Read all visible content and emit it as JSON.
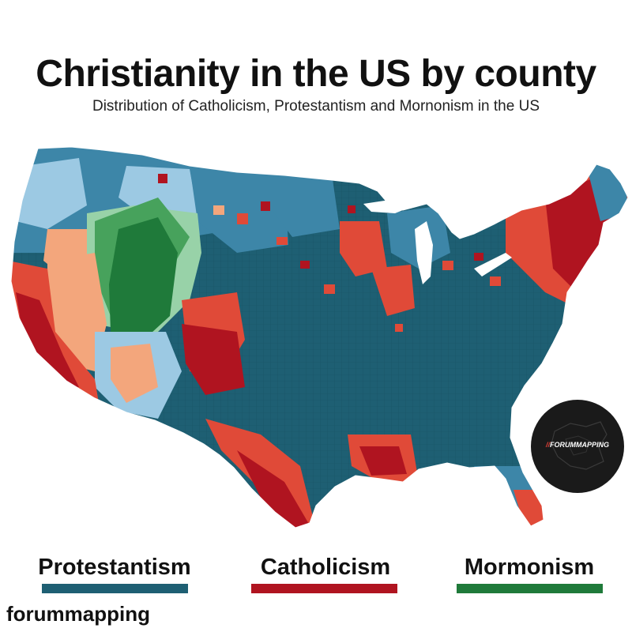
{
  "header": {
    "title": "Christianity in the US by county",
    "subtitle": "Distribution of Catholicism, Protestantism and Mornonism in the US"
  },
  "legend": [
    {
      "label": "Protestantism",
      "color": "#1e5f73"
    },
    {
      "label": "Catholicism",
      "color": "#b01420"
    },
    {
      "label": "Mormonism",
      "color": "#1f7a3a"
    }
  ],
  "palette": {
    "protestant_dark": "#1e5f73",
    "protestant_mid": "#3d86a8",
    "protestant_light": "#9cc9e3",
    "catholic_dark": "#b01420",
    "catholic_mid": "#e04a38",
    "catholic_light": "#f3a67c",
    "mormon_dark": "#1f7a3a",
    "mormon_mid": "#47a25c",
    "mormon_light": "#98d2a8"
  },
  "badge": {
    "slash": "//",
    "text": "FORUMMAPPING",
    "icon": "europe-map-icon"
  },
  "watermark": "forummapping"
}
